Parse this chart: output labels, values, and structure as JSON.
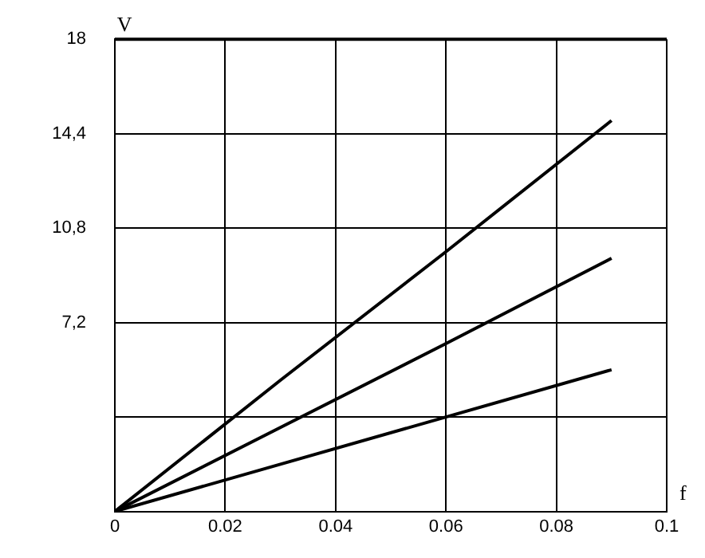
{
  "chart_data": {
    "type": "line",
    "xlabel": "f",
    "ylabel": "V",
    "xlim": [
      0,
      0.1
    ],
    "xticks": [
      0,
      0.02,
      0.04,
      0.06,
      0.08,
      0.1
    ],
    "ylim": [
      0,
      18
    ],
    "yticks": [
      {
        "value": 0,
        "label": null
      },
      {
        "value": 3.6,
        "label": null
      },
      {
        "value": 7.2,
        "label": "7,2"
      },
      {
        "value": 10.8,
        "label": "10,8"
      },
      {
        "value": 14.4,
        "label": "14,4"
      },
      {
        "value": 18,
        "label": "18"
      }
    ],
    "grid": true,
    "legend": false,
    "marker": "none",
    "line_style": "solid",
    "x": [
      0,
      0.03,
      0.06,
      0.09
    ],
    "series": [
      {
        "color": "#000000",
        "values": [
          0,
          5.0,
          9.9,
          14.9
        ]
      },
      {
        "color": "#000000",
        "values": [
          0,
          3.2,
          6.4,
          9.65
        ]
      },
      {
        "color": "#000000",
        "values": [
          0,
          1.8,
          3.6,
          5.4
        ]
      }
    ]
  }
}
